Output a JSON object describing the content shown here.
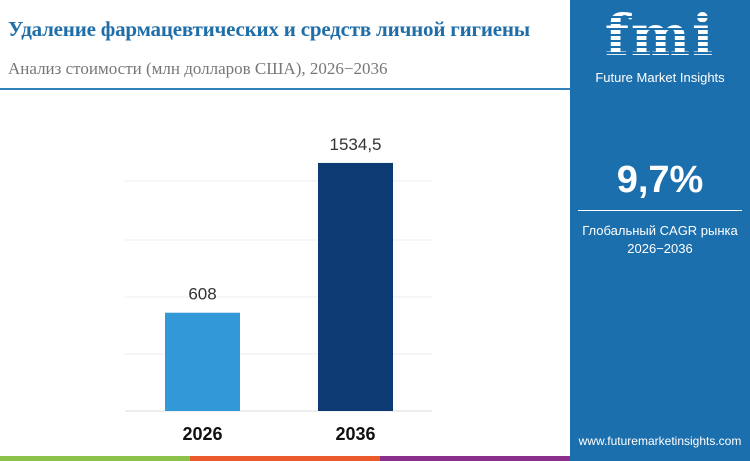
{
  "title": "Удаление фармацевтических и средств личной гигиены",
  "subtitle": "Анализ стоимости (млн долларов США), 2026−2036",
  "panel": {
    "brand": "Future Market Insights",
    "logo_text": "fmi",
    "cagr_value": "9,7%",
    "cagr_label_line1": "Глобальный CAGR рынка",
    "cagr_label_line2": "2026−2036",
    "url": "www.futuremarketinsights.com"
  },
  "colors": {
    "title": "#1f6ea8",
    "panel": "#1c6fad",
    "bar_2026": "#3398d8",
    "bar_2036": "#0d3a73",
    "stripe": [
      "#8cc14a",
      "#ea5a2a",
      "#8a2f8c"
    ]
  },
  "chart_data": {
    "type": "bar",
    "categories": [
      "2026",
      "2036"
    ],
    "values": [
      608,
      1534.5
    ],
    "value_labels": [
      "608",
      "1534,5"
    ],
    "ylim": [
      0,
      1800
    ],
    "grid": true,
    "legend": "none"
  }
}
